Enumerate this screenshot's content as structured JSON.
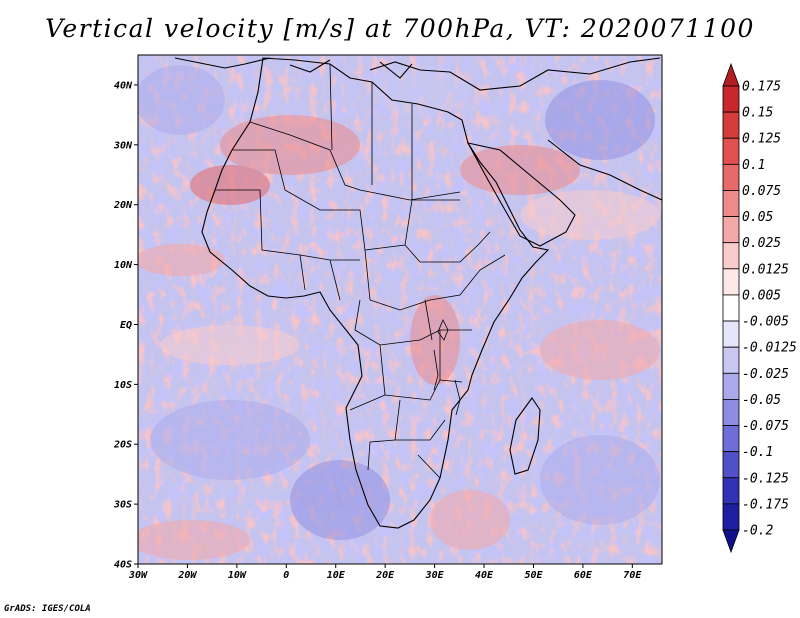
{
  "title": "Vertical velocity [m/s] at 700hPa, VT: 2020071100",
  "credit": "GrADS: IGES/COLA",
  "map": {
    "region": "Africa and surrounding oceans",
    "lon_range": [
      -30,
      76
    ],
    "lat_range": [
      -40,
      45
    ],
    "lat_labels": [
      "40N",
      "30N",
      "20N",
      "10N",
      "EQ",
      "10S",
      "20S",
      "30S",
      "40S"
    ],
    "lon_labels": [
      "30W",
      "20W",
      "10W",
      "0",
      "10E",
      "20E",
      "30E",
      "40E",
      "50E",
      "60E",
      "70E"
    ]
  },
  "colorbar": {
    "levels": [
      "0.175",
      "0.15",
      "0.125",
      "0.1",
      "0.075",
      "0.05",
      "0.025",
      "0.0125",
      "0.005",
      "-0.005",
      "-0.0125",
      "-0.025",
      "-0.05",
      "-0.075",
      "-0.1",
      "-0.125",
      "-0.175",
      "-0.2"
    ],
    "colors": [
      "#b41e23",
      "#c8282d",
      "#d63c3c",
      "#e05050",
      "#e66a6a",
      "#ee8a8a",
      "#f4a8a8",
      "#f9cccc",
      "#ffe8e8",
      "#ffffff",
      "#e6e6fa",
      "#c8c8f3",
      "#aaaaeb",
      "#8c8ce2",
      "#6e6ed8",
      "#5050c8",
      "#3232b4",
      "#1e1ea0",
      "#10108c"
    ]
  }
}
